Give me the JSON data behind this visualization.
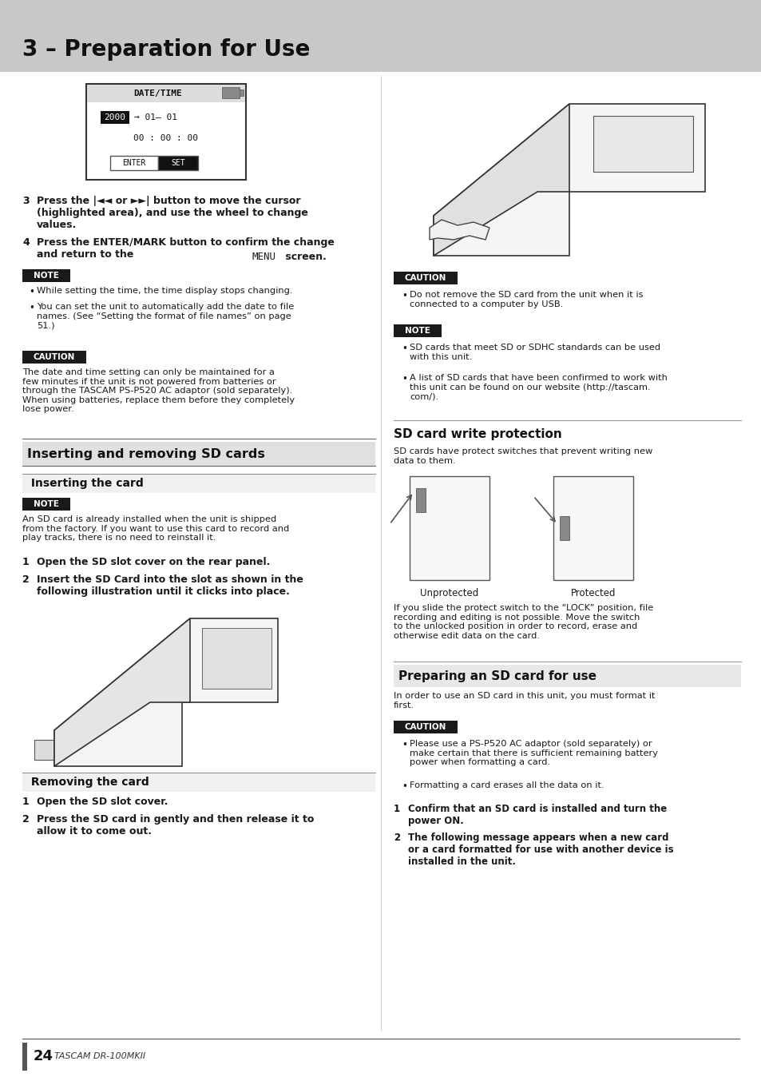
{
  "bg_color": "#ffffff",
  "header_bg": "#c8c8c8",
  "header_text": "3 – Preparation for Use",
  "page_number": "24",
  "page_brand": "TASCAM DR-100MKII",
  "body_color": "#1a1a1a",
  "note_bg": "#1a1a1a",
  "caution_bg": "#1a1a1a",
  "section_bg": "#e0e0e0",
  "subsection_bg": "#f0f0f0",
  "left": {
    "step3": "Press the |◄◄ or ►►| button to move the cursor\n(highlighted area), and use the wheel to change\nvalues.",
    "step4_bold": "Press the ENTER/MARK button to confirm the change\nand return to the ",
    "step4_mono": "MENU",
    "step4_end": " screen.",
    "note_bullets": [
      "While setting the time, the time display stops changing.",
      "You can set the unit to automatically add the date to file\nnames. (See “Setting the format of file names” on page\n51.)"
    ],
    "caution_text": "The date and time setting can only be maintained for a\nfew minutes if the unit is not powered from batteries or\nthrough the TASCAM PS-P520 AC adaptor (sold separately).\nWhen using batteries, replace them before they completely\nlose power.",
    "section1_title": "Inserting and removing SD cards",
    "sub1_title": "Inserting the card",
    "note2_text": "An SD card is already installed when the unit is shipped\nfrom the factory. If you want to use this card to record and\nplay tracks, there is no need to reinstall it.",
    "step1_bold": "Open the SD slot cover on the rear panel.",
    "step2_bold": "Insert the SD Card into the slot as shown in the\nfollowing illustration until it clicks into place.",
    "sub2_title": "Removing the card",
    "rem_step1": "Open the SD slot cover.",
    "rem_step2": "Press the SD card in gently and then release it to\nallow it to come out."
  },
  "right": {
    "caution_text": "Do not remove the SD card from the unit when it is\nconnected to a computer by USB.",
    "note_bullets": [
      "SD cards that meet SD or SDHC standards can be used\nwith this unit.",
      "A list of SD cards that have been confirmed to work with\nthis unit can be found on our website (http://tascam.\ncom/)."
    ],
    "wp_title": "SD card write protection",
    "wp_text": "SD cards have protect switches that prevent writing new\ndata to them.",
    "wp_label1": "Unprotected",
    "wp_label2": "Protected",
    "wp_body": "If you slide the protect switch to the “LOCK” position, file\nrecording and editing is not possible. Move the switch\nto the unlocked position in order to record, erase and\notherwise edit data on the card.",
    "prep_title": "Preparing an SD card for use",
    "prep_text": "In order to use an SD card in this unit, you must format it\nfirst.",
    "prep_caution": [
      "Please use a PS-P520 AC adaptor (sold separately) or\nmake certain that there is sufficient remaining battery\npower when formatting a card.",
      "Formatting a card erases all the data on it."
    ],
    "prep_step1": "Confirm that an SD card is installed and turn the\npower ON.",
    "prep_step2": "The following message appears when a new card\nor a card formatted for use with another device is\ninstalled in the unit."
  }
}
